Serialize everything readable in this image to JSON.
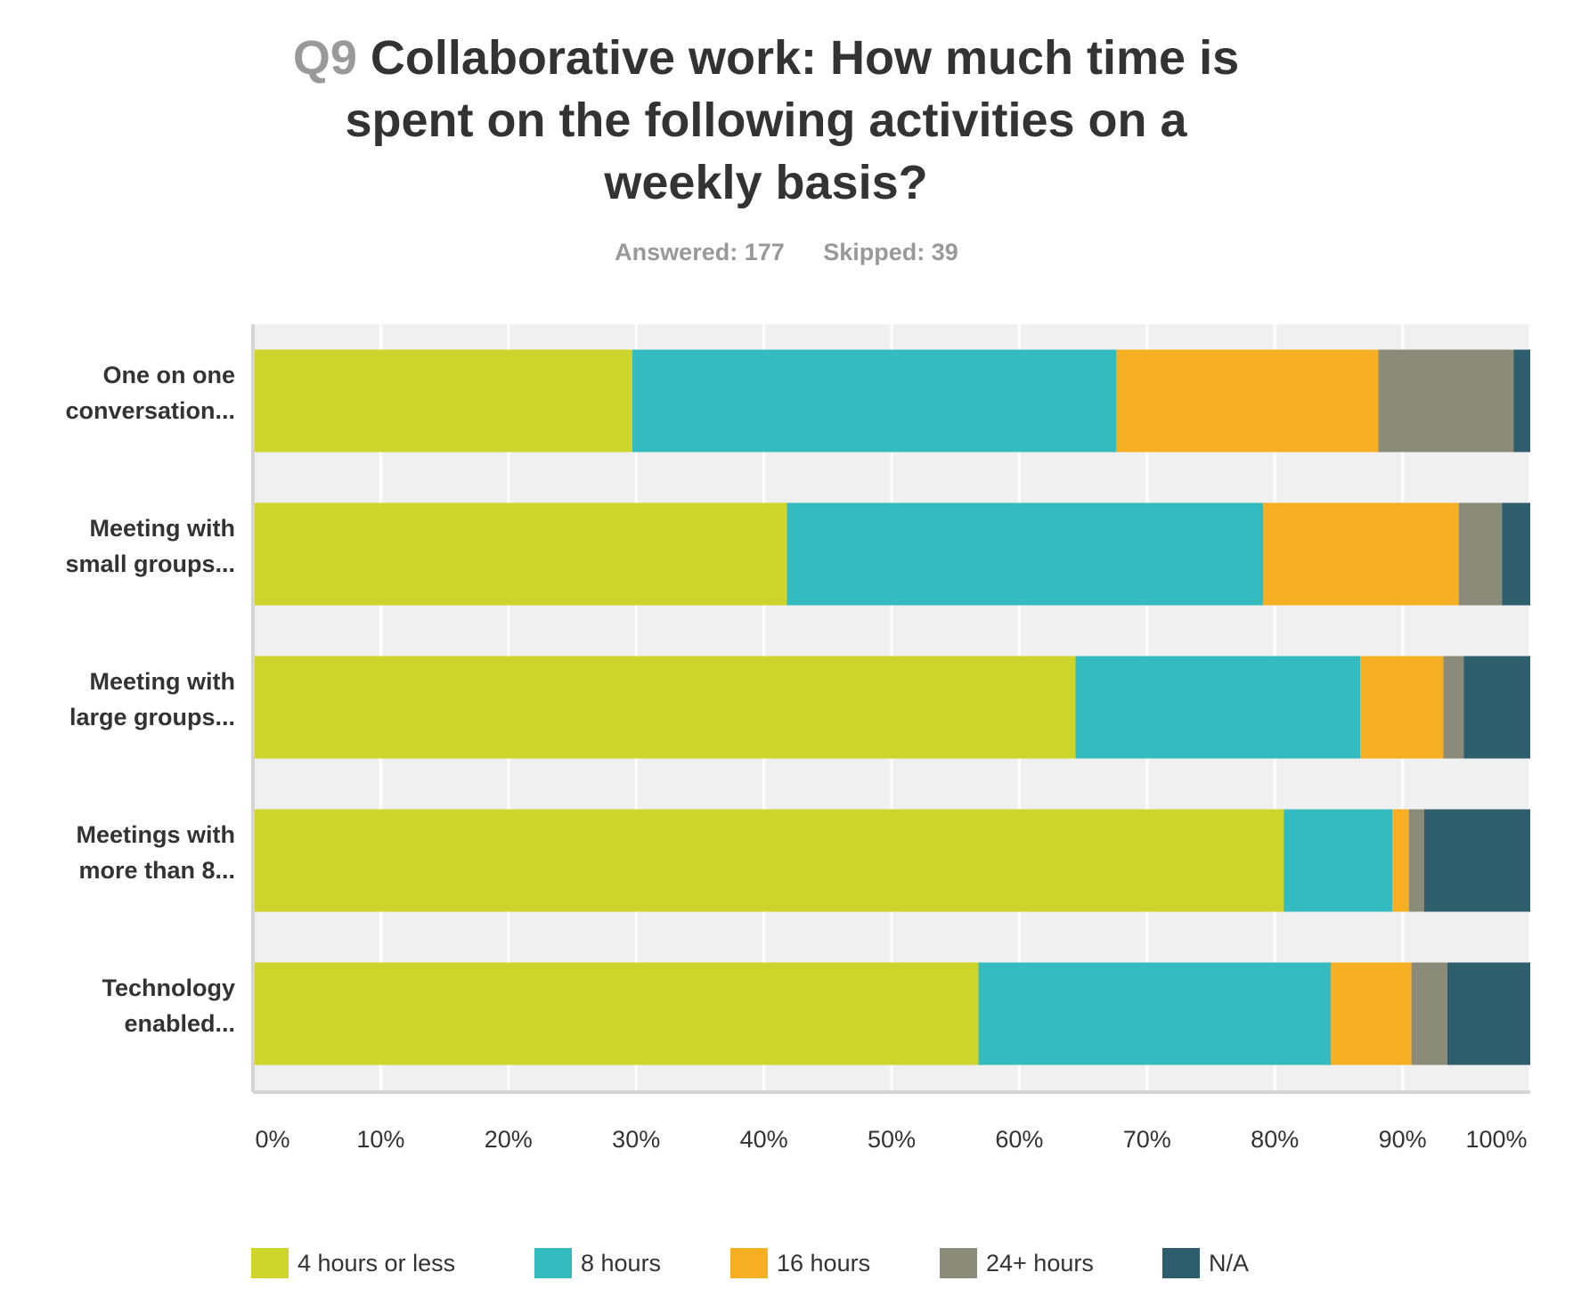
{
  "header": {
    "qnum": "Q9",
    "title": "Collaborative work: How much time is spent on the following activities on a weekly basis?",
    "answered": "Answered: 177",
    "skipped": "Skipped: 39"
  },
  "chart_data": {
    "type": "bar",
    "orientation": "horizontal",
    "stacked": true,
    "categories": [
      "One on one conversation...",
      "Meeting with small groups...",
      "Meeting with large groups...",
      "Meetings with more than 8...",
      "Technology enabled..."
    ],
    "category_lines": [
      [
        "One on one",
        "conversation..."
      ],
      [
        "Meeting with",
        "small groups..."
      ],
      [
        "Meeting with",
        "large groups..."
      ],
      [
        "Meetings with",
        "more than 8..."
      ],
      [
        "Technology",
        "enabled..."
      ]
    ],
    "series": [
      {
        "name": "4 hours or less",
        "color": "#cdd52a",
        "values": [
          29.7,
          41.8,
          64.4,
          80.7,
          56.8
        ]
      },
      {
        "name": "8 hours",
        "color": "#34bbbf",
        "values": [
          37.9,
          37.3,
          22.3,
          8.5,
          27.6
        ]
      },
      {
        "name": "16 hours",
        "color": "#f6ae22",
        "values": [
          20.5,
          15.3,
          6.5,
          1.3,
          6.3
        ]
      },
      {
        "name": "24+ hours",
        "color": "#8a8b79",
        "values": [
          10.6,
          3.4,
          1.6,
          1.2,
          2.8
        ]
      },
      {
        "name": "N/A",
        "color": "#2e5e6e",
        "values": [
          1.3,
          2.2,
          5.2,
          8.3,
          6.5
        ]
      }
    ],
    "xlim": [
      0,
      100
    ],
    "xticks": [
      "0%",
      "10%",
      "20%",
      "30%",
      "40%",
      "50%",
      "60%",
      "70%",
      "80%",
      "90%",
      "100%"
    ],
    "grid": true,
    "legend_position": "bottom"
  }
}
